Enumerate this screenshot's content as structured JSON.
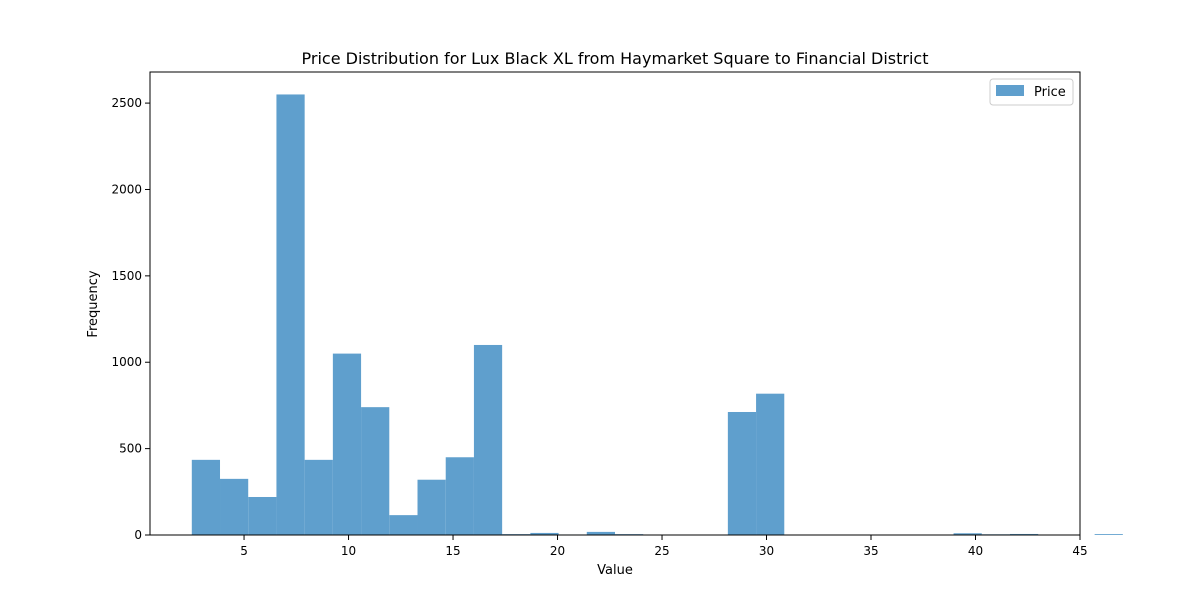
{
  "chart_data": {
    "type": "bar",
    "subtype": "histogram",
    "title": "Price Distribution for Lux Black XL from Haymarket Square to Financial District",
    "xlabel": "Value",
    "ylabel": "Frequency",
    "xlim": [
      0.5,
      45
    ],
    "ylim": [
      0,
      2680
    ],
    "x_ticks": [
      5,
      10,
      15,
      20,
      25,
      30,
      35,
      40,
      45
    ],
    "y_ticks": [
      0,
      500,
      1000,
      1500,
      2000,
      2500
    ],
    "bin_start": 2.5,
    "bin_width": 1.35,
    "values": [
      435,
      325,
      220,
      2550,
      435,
      1050,
      740,
      115,
      320,
      450,
      1100,
      5,
      12,
      3,
      18,
      5,
      0,
      0,
      0,
      712,
      818,
      0,
      0,
      0,
      0,
      0,
      0,
      10,
      4,
      6,
      0,
      0,
      5
    ],
    "series": [
      {
        "name": "Price",
        "color": "#5f9fcd"
      }
    ],
    "legend": {
      "position": "top-right"
    }
  }
}
